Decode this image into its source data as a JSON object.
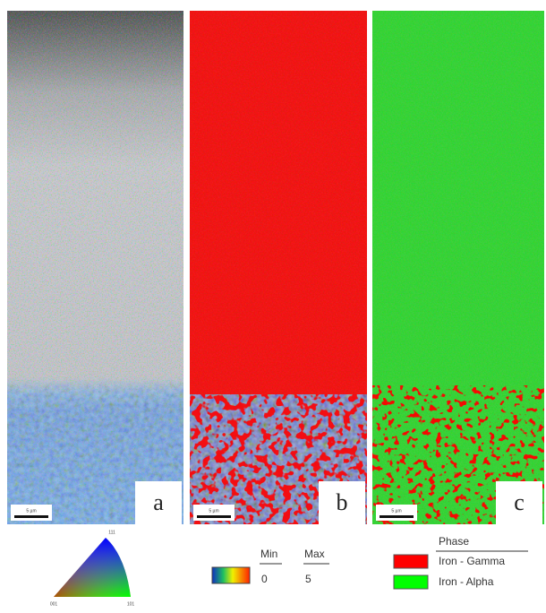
{
  "panels": [
    {
      "label": "a",
      "scale_bar": "5 µm"
    },
    {
      "label": "b",
      "scale_bar": "5 µm"
    },
    {
      "label": "c",
      "scale_bar": "5 µm"
    }
  ],
  "ipf_legend": {
    "top": "111",
    "left": "001",
    "right": "101"
  },
  "misorientation_legend": {
    "min_label": "Min",
    "max_label": "Max",
    "min_value": "0",
    "max_value": "5"
  },
  "phase_legend": {
    "title": "Phase",
    "phases": [
      {
        "name": "Iron - Gamma",
        "color": "#ff0000"
      },
      {
        "name": "Iron - Alpha",
        "color": "#00ff00"
      }
    ]
  }
}
